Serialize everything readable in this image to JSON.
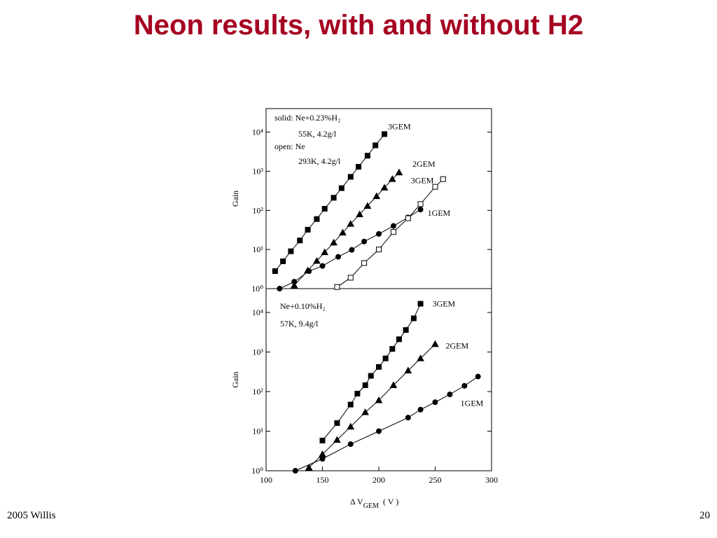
{
  "slide": {
    "title": "Neon results, with and without H2",
    "footer_left": "2005 Willis",
    "page_number": "20"
  },
  "chart_data": [
    {
      "type": "scatter",
      "y_label": "Gain",
      "log_y": true,
      "xlim": [
        100,
        300
      ],
      "ylim": [
        1,
        40000
      ],
      "yticks": [
        {
          "value": 1,
          "label": "10⁰"
        },
        {
          "value": 10,
          "label": "10¹"
        },
        {
          "value": 100,
          "label": "10²"
        },
        {
          "value": 1000,
          "label": "10³"
        },
        {
          "value": 10000,
          "label": "10⁴"
        }
      ],
      "annotations": [
        "solid: Ne+0.23%H₂",
        "55K, 4.2g/l",
        "open: Ne",
        "293K, 4.2g/l"
      ],
      "series": [
        {
          "name": "3GEM",
          "color": "#000000",
          "marker": "square",
          "filled": true,
          "x": [
            108,
            115,
            122,
            130,
            137,
            145,
            152,
            160,
            167,
            175,
            182,
            190,
            197,
            205
          ],
          "values": [
            2.8,
            5,
            9,
            17,
            32,
            60,
            110,
            210,
            370,
            720,
            1300,
            2500,
            4600,
            8900
          ]
        },
        {
          "name": "2GEM",
          "color": "#000000",
          "marker": "triangle",
          "filled": true,
          "x": [
            125,
            137,
            145,
            152,
            160,
            168,
            175,
            183,
            190,
            198,
            205,
            212,
            218
          ],
          "values": [
            1.2,
            2.9,
            5.1,
            8.5,
            15,
            27,
            45,
            79,
            130,
            230,
            380,
            630,
            930
          ]
        },
        {
          "name": "1GEM",
          "color": "#000000",
          "marker": "circle",
          "filled": true,
          "x": [
            112,
            125,
            138,
            150,
            164,
            176,
            187,
            200,
            213,
            226,
            237
          ],
          "values": [
            1,
            1.5,
            2.8,
            3.8,
            6.5,
            9.8,
            16,
            25,
            40,
            66,
            105
          ]
        },
        {
          "name": "3GEM",
          "color": "#000000",
          "marker": "square",
          "filled": false,
          "x": [
            163,
            175,
            187,
            200,
            213,
            226,
            237,
            250,
            257
          ],
          "values": [
            1.1,
            1.9,
            4.5,
            10,
            28,
            63,
            145,
            400,
            630
          ]
        }
      ]
    },
    {
      "type": "scatter",
      "y_label": "Gain",
      "log_y": true,
      "x_label": "Δ V",
      "x_label_sub": "GEM",
      "x_label_unit": "( V )",
      "xlim": [
        100,
        300
      ],
      "xticks": [
        100,
        150,
        200,
        250,
        300
      ],
      "ylim": [
        1,
        40000
      ],
      "yticks": [
        {
          "value": 1,
          "label": "10⁰"
        },
        {
          "value": 10,
          "label": "10¹"
        },
        {
          "value": 100,
          "label": "10²"
        },
        {
          "value": 1000,
          "label": "10³"
        },
        {
          "value": 10000,
          "label": "10⁴"
        }
      ],
      "annotations": [
        "Ne+0.10%H₂",
        "57K, 9.4g/l"
      ],
      "series": [
        {
          "name": "3GEM",
          "color": "#000000",
          "marker": "square",
          "filled": true,
          "x": [
            150,
            163,
            175,
            181,
            188,
            193,
            200,
            206,
            212,
            218,
            224,
            231,
            237
          ],
          "values": [
            5.8,
            16,
            47,
            89,
            145,
            250,
            420,
            690,
            1200,
            2100,
            3600,
            7100,
            16600
          ]
        },
        {
          "name": "2GEM",
          "color": "#000000",
          "marker": "triangle",
          "filled": true,
          "x": [
            138,
            150,
            163,
            175,
            188,
            200,
            213,
            226,
            237,
            250
          ],
          "values": [
            1.2,
            2.6,
            6,
            13,
            30,
            60,
            145,
            340,
            690,
            1580
          ]
        },
        {
          "name": "1GEM",
          "color": "#000000",
          "marker": "circle",
          "filled": true,
          "x": [
            126,
            150,
            175,
            200,
            226,
            237,
            250,
            263,
            276,
            288
          ],
          "values": [
            1,
            2,
            4.7,
            10,
            22,
            35,
            54,
            85,
            140,
            240
          ]
        }
      ]
    }
  ]
}
